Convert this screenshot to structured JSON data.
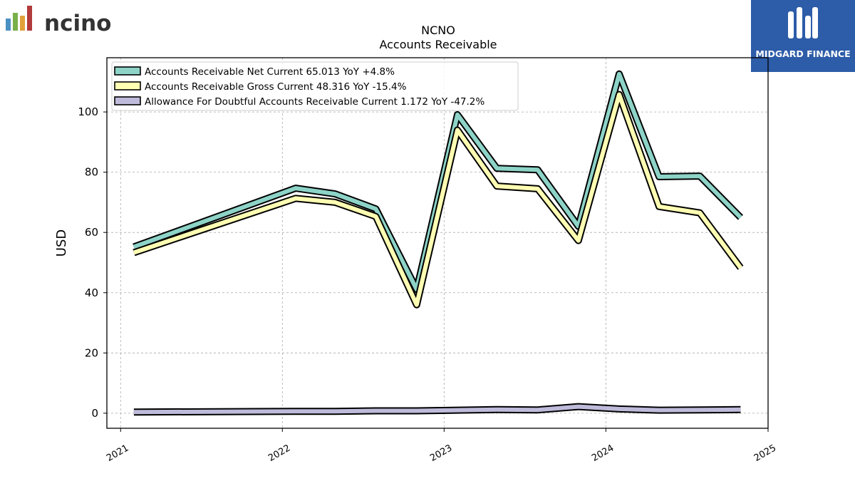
{
  "branding": {
    "left_logo": "ncino",
    "right_logo": "MIDGARD FINANCE"
  },
  "chart_data": {
    "type": "line",
    "title": "NCNO",
    "subtitle": "Accounts Receivable",
    "ylabel": "USD",
    "xlabel": "",
    "xlim": [
      "2020-12-01",
      "2025-01-01"
    ],
    "ylim": [
      -5,
      118
    ],
    "yticks": [
      0,
      20,
      40,
      60,
      80,
      100
    ],
    "xticks": [
      "2021",
      "2022",
      "2023",
      "2024",
      "2025"
    ],
    "grid": true,
    "legend_position": "top-left",
    "x": [
      "2021-01-31",
      "2022-01-31",
      "2022-04-30",
      "2022-07-31",
      "2022-10-31",
      "2023-01-31",
      "2023-04-30",
      "2023-07-31",
      "2023-10-31",
      "2024-01-31",
      "2024-04-30",
      "2024-07-31",
      "2024-10-31"
    ],
    "series": [
      {
        "name": "Accounts Receivable Net Current",
        "legend_label": "Accounts Receivable Net Current  65.013 YoY +4.8%",
        "color": "#8dd3c7",
        "values": [
          55.2,
          74.7,
          72.8,
          67.8,
          41.1,
          99.1,
          81.3,
          80.8,
          62.0,
          112.6,
          78.5,
          78.7,
          65.0
        ]
      },
      {
        "name": "Accounts Receivable Gross Current",
        "legend_label": "Accounts Receivable Gross Current  48.316 YoY -15.4%",
        "color": "#ffffb3",
        "values": [
          53.3,
          71.3,
          70.0,
          65.3,
          36.0,
          94.0,
          75.4,
          74.5,
          57.3,
          105.8,
          68.6,
          66.5,
          48.3
        ]
      },
      {
        "name": "Allowance For Doubtful Accounts Receivable Current",
        "legend_label": "Allowance For Doubtful Accounts Receivable Current  1.172 YoY -47.2%",
        "color": "#bebada",
        "values": [
          0.4,
          0.6,
          0.6,
          0.8,
          0.8,
          1.0,
          1.2,
          1.1,
          2.2,
          1.4,
          1.0,
          1.1,
          1.2
        ]
      }
    ]
  }
}
